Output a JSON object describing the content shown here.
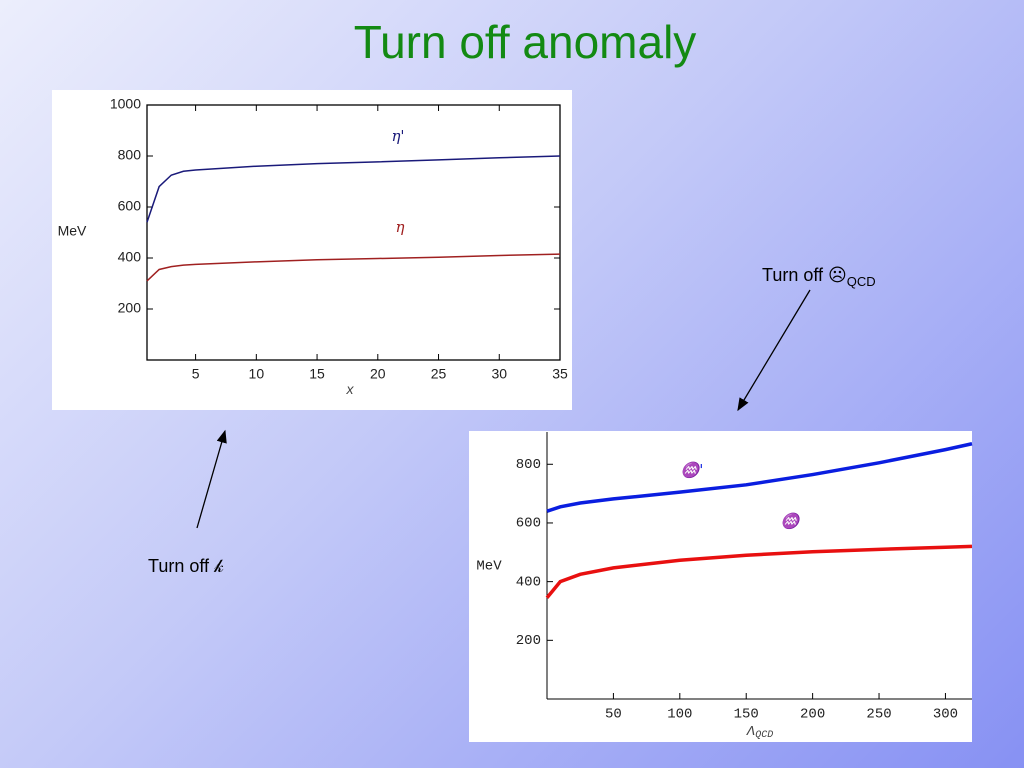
{
  "slide": {
    "title": "Turn off anomaly",
    "annotations": [
      {
        "text": "Turn off ☹",
        "sub": "QCD"
      },
      {
        "text": "Turn off 𝓀"
      }
    ]
  },
  "chart_data": [
    {
      "type": "line",
      "x_label": {
        "text": "x"
      },
      "y_label": "MeV",
      "x": [
        1,
        2,
        3,
        4,
        5,
        10,
        15,
        20,
        25,
        30,
        35
      ],
      "xlim": [
        1,
        35
      ],
      "xticks": [
        5,
        10,
        15,
        20,
        25,
        30,
        35
      ],
      "ylim": [
        0,
        1000
      ],
      "yticks": [
        200,
        400,
        600,
        800,
        1000
      ],
      "grid": false,
      "series": [
        {
          "name": "η'",
          "color": "#1a1a7a",
          "values": [
            540,
            680,
            725,
            740,
            745,
            760,
            770,
            777,
            785,
            793,
            800
          ]
        },
        {
          "name": "η",
          "color": "#a02020",
          "values": [
            310,
            355,
            366,
            372,
            375,
            385,
            393,
            398,
            403,
            410,
            415
          ]
        }
      ]
    },
    {
      "type": "line",
      "x_label": {
        "text": "Λ",
        "sub": "QCD"
      },
      "y_label": "MeV",
      "x": [
        0,
        10,
        25,
        50,
        100,
        150,
        200,
        250,
        300,
        320
      ],
      "xlim": [
        0,
        320
      ],
      "xticks": [
        50,
        100,
        150,
        200,
        250,
        300
      ],
      "ylim": [
        0,
        910
      ],
      "yticks": [
        200,
        400,
        600,
        800
      ],
      "grid": false,
      "series": [
        {
          "name": "♒'",
          "color": "#0a1ee0",
          "values": [
            640,
            655,
            668,
            682,
            705,
            730,
            765,
            805,
            850,
            870
          ]
        },
        {
          "name": "♒",
          "color": "#e81010",
          "values": [
            345,
            400,
            425,
            447,
            473,
            490,
            502,
            510,
            517,
            520
          ]
        }
      ]
    }
  ]
}
